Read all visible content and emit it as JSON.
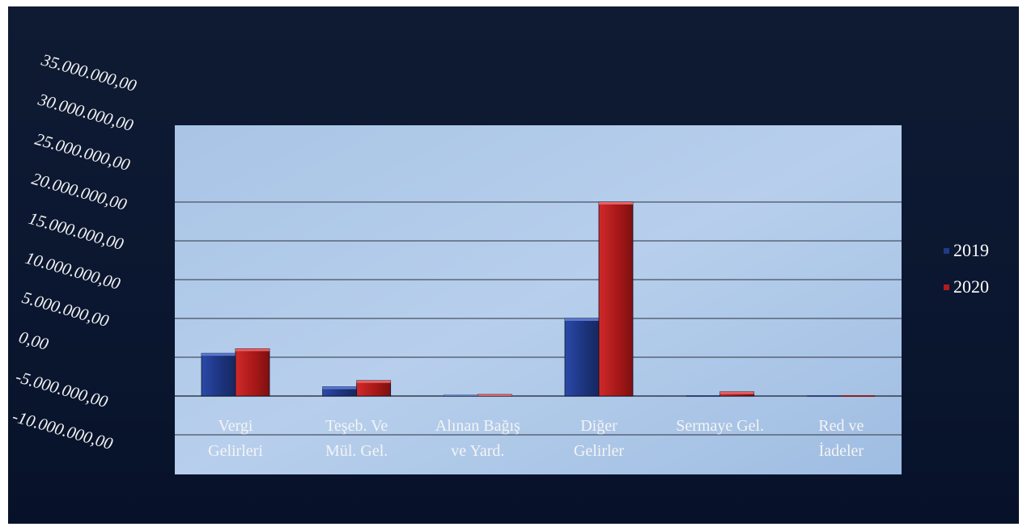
{
  "chart_data": {
    "type": "bar",
    "categories": [
      [
        "Vergi",
        "Gelirleri"
      ],
      [
        "Teşeb. Ve",
        "Mül. Gel."
      ],
      [
        "Alınan Bağış",
        "ve Yard."
      ],
      [
        "Diğer",
        "Gelirler"
      ],
      [
        "Sermaye Gel.",
        ""
      ],
      [
        "Red ve",
        "İadeler"
      ]
    ],
    "series": [
      {
        "name": "2019",
        "color": "#1f3a8a",
        "values": [
          5500000,
          1200000,
          100000,
          10000000,
          0,
          0
        ]
      },
      {
        "name": "2020",
        "color": "#b21c1c",
        "values": [
          6100000,
          2000000,
          200000,
          25000000,
          550000,
          0
        ]
      }
    ],
    "ylim": [
      -10000000,
      35000000
    ],
    "yticks": [
      "35.000.000,00",
      "30.000.000,00",
      "25.000.000,00",
      "20.000.000,00",
      "15.000.000,00",
      "10.000.000,00",
      "5.000.000,00",
      "0,00",
      "-5.000.000,00",
      "-10.000.000,00"
    ],
    "grid": true,
    "legend_position": "right"
  }
}
